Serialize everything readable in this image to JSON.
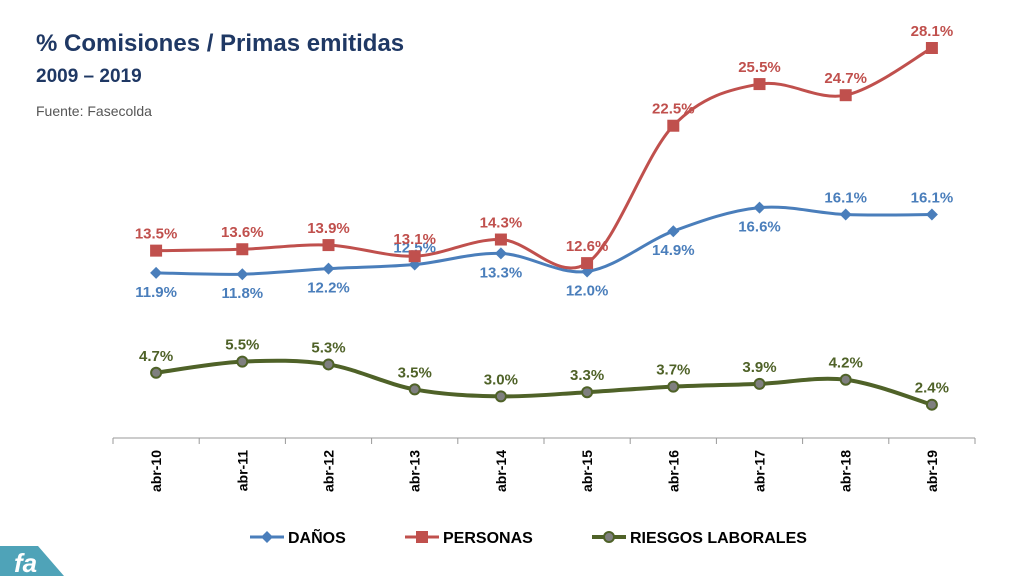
{
  "header": {
    "title": "% Comisiones / Primas emitidas",
    "subtitle": "2009 – 2019",
    "source": "Fuente: Fasecolda"
  },
  "logo": {
    "text": "fa",
    "icon": "fasecolda-logo-icon"
  },
  "colors": {
    "danos": "#4a7ebb",
    "personas": "#c0504d",
    "riesgos": "#4f6228",
    "axis": "#999999",
    "background": "#ffffff"
  },
  "chart_data": {
    "type": "line",
    "title": "% Comisiones / Primas emitidas",
    "subtitle": "2009 – 2019",
    "categories": [
      "abr-10",
      "abr-11",
      "abr-12",
      "abr-13",
      "abr-14",
      "abr-15",
      "abr-16",
      "abr-17",
      "abr-18",
      "abr-19"
    ],
    "ylim": [
      0,
      30
    ],
    "grid": false,
    "legend": "bottom",
    "smooth": true,
    "series": [
      {
        "name": "DAÑOS",
        "marker": "diamond",
        "values": [
          11.9,
          11.8,
          12.2,
          12.5,
          13.3,
          12.0,
          14.9,
          16.6,
          16.1,
          16.1
        ],
        "labels": [
          "11.9%",
          "11.8%",
          "12.2%",
          "12.5%",
          "13.3%",
          "12.0%",
          "14.9%",
          "16.6%",
          "16.1%",
          "16.1%"
        ]
      },
      {
        "name": "PERSONAS",
        "marker": "square",
        "values": [
          13.5,
          13.6,
          13.9,
          13.1,
          14.3,
          12.6,
          22.5,
          25.5,
          24.7,
          28.1
        ],
        "labels": [
          "13.5%",
          "13.6%",
          "13.9%",
          "13.1%",
          "14.3%",
          "12.6%",
          "22.5%",
          "25.5%",
          "24.7%",
          "28.1%"
        ]
      },
      {
        "name": "RIESGOS LABORALES",
        "marker": "circle",
        "values": [
          4.7,
          5.5,
          5.3,
          3.5,
          3.0,
          3.3,
          3.7,
          3.9,
          4.2,
          2.4
        ],
        "labels": [
          "4.7%",
          "5.5%",
          "5.3%",
          "3.5%",
          "3.0%",
          "3.3%",
          "3.7%",
          "3.9%",
          "4.2%",
          "2.4%"
        ]
      }
    ]
  }
}
